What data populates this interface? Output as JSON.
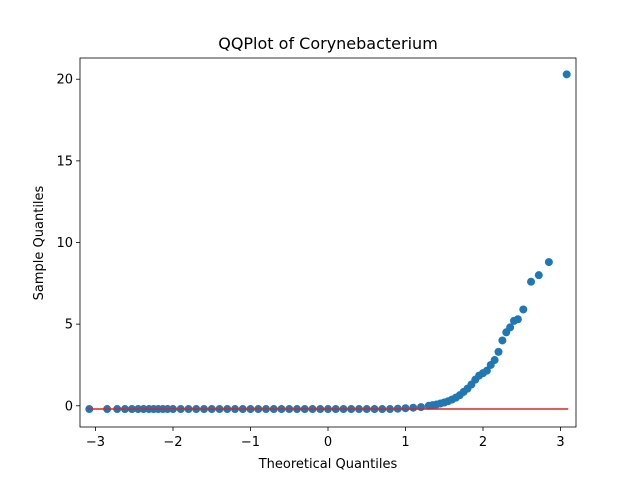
{
  "chart_data": {
    "type": "scatter",
    "title": "QQPlot of Corynebacterium",
    "xlabel": "Theoretical Quantiles",
    "ylabel": "Sample Quantiles",
    "xlim": [
      -3.2,
      3.2
    ],
    "ylim": [
      -1.3,
      21.3
    ],
    "x_ticks": [
      -3,
      -2,
      -1,
      0,
      1,
      2,
      3
    ],
    "y_ticks": [
      0,
      5,
      10,
      15,
      20
    ],
    "grid": false,
    "legend": "none",
    "point_color": "#1f77b4",
    "line_color": "#d62728",
    "reference_line": {
      "x": [
        -3.1,
        3.1
      ],
      "y": [
        -0.2,
        -0.2
      ]
    },
    "series": [
      {
        "x": [
          -3.08,
          -2.85,
          -2.72,
          -2.62,
          -2.53,
          -2.45,
          -2.38,
          -2.31,
          -2.25,
          -2.19,
          -2.13,
          -2.07,
          -2.0,
          -1.9,
          -1.8,
          -1.7,
          -1.6,
          -1.5,
          -1.4,
          -1.3,
          -1.2,
          -1.1,
          -1.0,
          -0.9,
          -0.8,
          -0.7,
          -0.6,
          -0.5,
          -0.4,
          -0.3,
          -0.2,
          -0.1,
          0.0,
          0.1,
          0.2,
          0.3,
          0.4,
          0.5,
          0.6,
          0.7,
          0.8,
          0.9,
          1.0,
          1.1,
          1.2,
          1.3,
          1.35,
          1.4,
          1.45,
          1.5,
          1.55,
          1.6,
          1.65,
          1.7,
          1.75,
          1.8,
          1.85,
          1.9,
          1.95,
          2.0,
          2.05,
          2.1,
          2.15,
          2.2,
          2.25,
          2.3,
          2.35,
          2.4,
          2.45,
          2.52,
          2.62,
          2.72,
          2.85,
          3.08
        ],
        "y": [
          -0.2,
          -0.2,
          -0.2,
          -0.2,
          -0.2,
          -0.2,
          -0.2,
          -0.2,
          -0.2,
          -0.2,
          -0.2,
          -0.2,
          -0.2,
          -0.2,
          -0.2,
          -0.2,
          -0.2,
          -0.2,
          -0.2,
          -0.2,
          -0.2,
          -0.2,
          -0.2,
          -0.2,
          -0.2,
          -0.2,
          -0.2,
          -0.2,
          -0.2,
          -0.2,
          -0.2,
          -0.2,
          -0.2,
          -0.2,
          -0.2,
          -0.2,
          -0.2,
          -0.2,
          -0.2,
          -0.2,
          -0.2,
          -0.18,
          -0.15,
          -0.12,
          -0.08,
          0.0,
          0.04,
          0.08,
          0.14,
          0.2,
          0.28,
          0.38,
          0.5,
          0.65,
          0.85,
          1.05,
          1.3,
          1.6,
          1.85,
          2.0,
          2.15,
          2.5,
          2.8,
          3.3,
          4.0,
          4.5,
          4.8,
          5.2,
          5.3,
          5.9,
          7.6,
          8.0,
          8.8,
          20.3
        ]
      }
    ]
  }
}
